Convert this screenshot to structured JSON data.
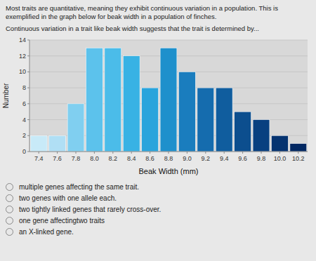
{
  "chart_data": {
    "type": "bar",
    "xlabel": "Beak Width (mm)",
    "ylabel": "Number",
    "categories": [
      "7.4",
      "7.6",
      "7.8",
      "8.0",
      "8.2",
      "8.4",
      "8.6",
      "8.8",
      "9.0",
      "9.2",
      "9.4",
      "9.6",
      "9.8",
      "10.0",
      "10.2"
    ],
    "values": [
      2,
      2,
      6,
      13,
      13,
      12,
      8,
      13,
      10,
      8,
      8,
      5,
      4,
      2,
      1
    ],
    "colors": [
      "#c8eaf8",
      "#b0dff5",
      "#80cff0",
      "#5cc2ec",
      "#4bbce9",
      "#38b2e4",
      "#2aa4dc",
      "#1e90cc",
      "#1a7dbe",
      "#156cae",
      "#105d9e",
      "#0c4e8e",
      "#084080",
      "#053370",
      "#022862"
    ],
    "ylim": [
      0,
      14
    ],
    "yticks": [
      0,
      2,
      4,
      6,
      8,
      10,
      12,
      14
    ],
    "grid": true,
    "annotations": [
      "Most traits are quantitative, meaning they exhibit continuous variation in a population. This is",
      "exemplified in the graph below for beak width in a population of finches.",
      "Continuous variation in a trait like beak width suggests that the trait is determined by..."
    ],
    "options": [
      "multiple genes affecting the same trait.",
      "two genes with one allele each.",
      "two tightly linked genes that rarely cross-over.",
      "one gene affectingtwo traits",
      "an X-linked gene."
    ]
  }
}
